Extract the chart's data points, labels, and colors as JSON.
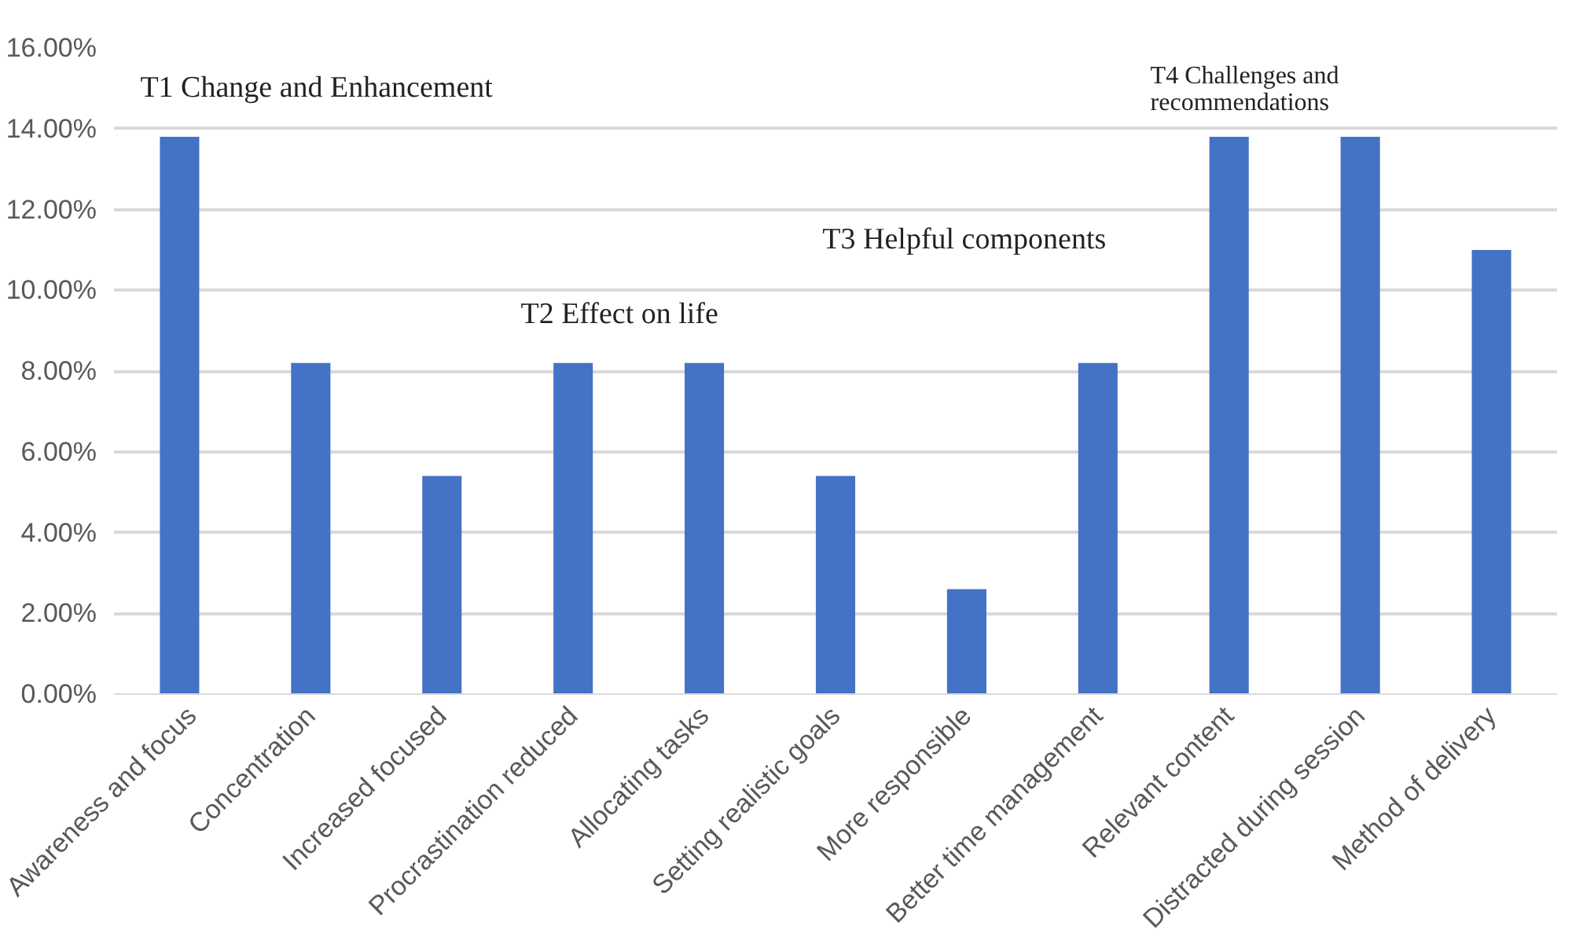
{
  "chart_data": {
    "type": "bar",
    "categories": [
      "Awareness and focus",
      "Concentration",
      "Increased focused",
      "Procrastination reduced",
      "Allocating tasks",
      "Setting realistic goals",
      "More responsible",
      "Better time management",
      "Relevant content",
      "Distracted during session",
      "Method of delivery"
    ],
    "values": [
      13.8,
      8.2,
      5.4,
      8.2,
      8.2,
      5.4,
      2.6,
      8.2,
      13.8,
      13.8,
      11.0
    ],
    "color": "#4472c4",
    "ylim": [
      0,
      16
    ],
    "yticks": [
      {
        "value": 0,
        "label": "0.00%"
      },
      {
        "value": 2,
        "label": "2.00%"
      },
      {
        "value": 4,
        "label": "4.00%"
      },
      {
        "value": 6,
        "label": "6.00%"
      },
      {
        "value": 8,
        "label": "8.00%"
      },
      {
        "value": 10,
        "label": "10.00%"
      },
      {
        "value": 12,
        "label": "12.00%"
      },
      {
        "value": 14,
        "label": "14.00%"
      },
      {
        "value": 16,
        "label": "16.00%"
      }
    ],
    "grid": "y",
    "annotations": [
      "T1 Change and Enhancement",
      "T2 Effect on life",
      "T3 Helpful components",
      "T4 Challenges and\nrecommendations"
    ]
  }
}
